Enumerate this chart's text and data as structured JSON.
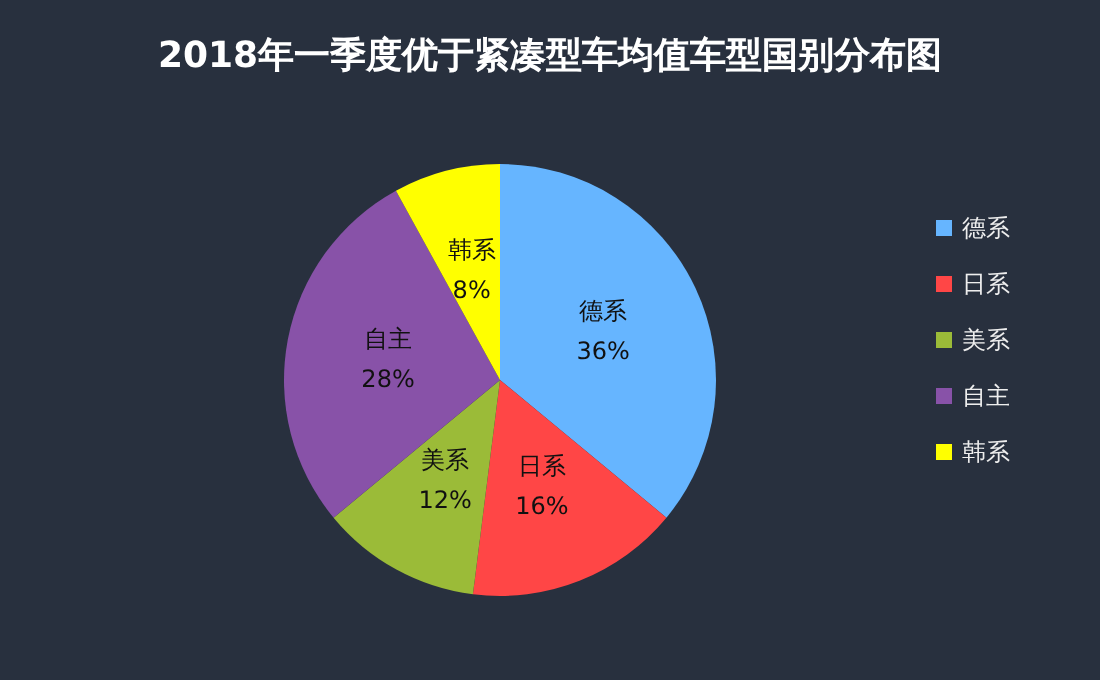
{
  "chart_data": {
    "type": "pie",
    "title": "2018年一季度优于紧凑型车均值车型国别分布图",
    "categories": [
      "德系",
      "日系",
      "美系",
      "自主",
      "韩系"
    ],
    "values": [
      36,
      16,
      12,
      28,
      8
    ],
    "value_labels": [
      "36%",
      "16%",
      "12%",
      "28%",
      "8%"
    ],
    "colors": [
      "#66b5ff",
      "#ff4646",
      "#9bbb38",
      "#8852a8",
      "#ffff00"
    ],
    "legend": "right"
  }
}
